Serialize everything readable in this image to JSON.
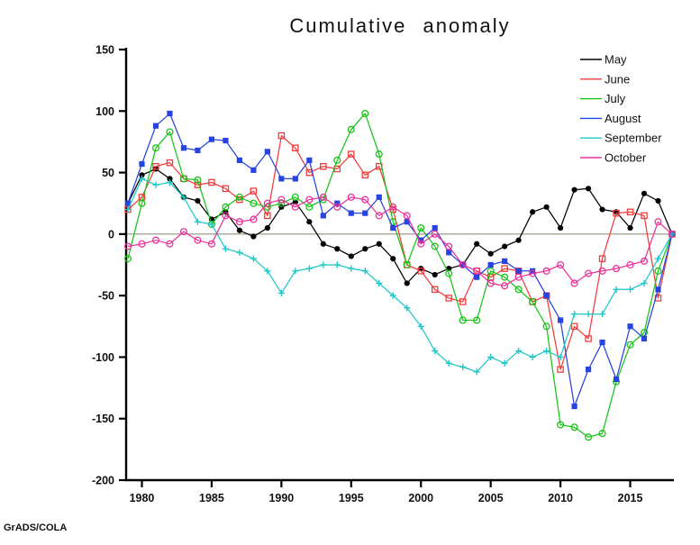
{
  "title": "Cumulative anomaly",
  "footer": {
    "credit": "GrADS/COLA"
  },
  "colors": {
    "axis": "#000000",
    "zero_line": "#a9a398",
    "background": "#ffffff",
    "tick_label": "#111111"
  },
  "chart_data": {
    "type": "line",
    "title": "Cumulative anomaly",
    "xlabel": "",
    "ylabel": "",
    "xlim": [
      1979,
      2018
    ],
    "ylim": [
      -200,
      150
    ],
    "xticks": [
      1980,
      1985,
      1990,
      1995,
      2000,
      2005,
      2010,
      2015
    ],
    "yticks": [
      150,
      100,
      50,
      0,
      -50,
      -100,
      -150,
      -200
    ],
    "grid": false,
    "zero_line": true,
    "legend_position": "top-right",
    "x": [
      1979,
      1980,
      1981,
      1982,
      1983,
      1984,
      1985,
      1986,
      1987,
      1988,
      1989,
      1990,
      1991,
      1992,
      1993,
      1994,
      1995,
      1996,
      1997,
      1998,
      1999,
      2000,
      2001,
      2002,
      2003,
      2004,
      2005,
      2006,
      2007,
      2008,
      2009,
      2010,
      2011,
      2012,
      2013,
      2014,
      2015,
      2016,
      2017,
      2018
    ],
    "series": [
      {
        "name": "May",
        "color": "#000000",
        "marker": "filled-circle",
        "values": [
          25,
          48,
          53,
          45,
          30,
          27,
          12,
          18,
          3,
          -2,
          5,
          22,
          26,
          10,
          -8,
          -12,
          -18,
          -12,
          -8,
          -20,
          -40,
          -28,
          -33,
          -28,
          -25,
          -8,
          -16,
          -10,
          -5,
          18,
          22,
          5,
          36,
          37,
          20,
          18,
          5,
          33,
          27,
          0
        ]
      },
      {
        "name": "June",
        "color": "#f23c3c",
        "marker": "open-square",
        "values": [
          20,
          30,
          55,
          58,
          45,
          40,
          42,
          37,
          28,
          35,
          15,
          80,
          70,
          50,
          55,
          53,
          65,
          48,
          55,
          20,
          -25,
          -30,
          -45,
          -52,
          -55,
          -30,
          -35,
          -28,
          -30,
          -55,
          -50,
          -110,
          -75,
          -85,
          -20,
          17,
          18,
          15,
          -52,
          0
        ]
      },
      {
        "name": "July",
        "color": "#18c318",
        "marker": "open-circle",
        "values": [
          -20,
          25,
          70,
          83,
          45,
          44,
          8,
          22,
          30,
          25,
          22,
          25,
          30,
          22,
          28,
          60,
          85,
          98,
          65,
          10,
          -25,
          5,
          -10,
          -32,
          -70,
          -70,
          -30,
          -35,
          -45,
          -55,
          -75,
          -155,
          -157,
          -165,
          -162,
          -120,
          -90,
          -80,
          -30,
          0
        ]
      },
      {
        "name": "August",
        "color": "#2743e0",
        "marker": "filled-square",
        "values": [
          25,
          57,
          88,
          98,
          70,
          68,
          77,
          76,
          60,
          52,
          67,
          45,
          45,
          60,
          15,
          25,
          17,
          17,
          30,
          5,
          10,
          -5,
          5,
          -15,
          -25,
          -35,
          -25,
          -22,
          -30,
          -30,
          -50,
          -70,
          -140,
          -110,
          -88,
          -118,
          -75,
          -85,
          -45,
          0
        ]
      },
      {
        "name": "September",
        "color": "#1fc8c8",
        "marker": "plus",
        "values": [
          20,
          45,
          40,
          42,
          30,
          10,
          8,
          -12,
          -15,
          -20,
          -30,
          -48,
          -30,
          -28,
          -25,
          -25,
          -28,
          -30,
          -40,
          -50,
          -60,
          -75,
          -95,
          -105,
          -108,
          -112,
          -100,
          -105,
          -95,
          -100,
          -95,
          -100,
          -65,
          -65,
          -65,
          -45,
          -45,
          -40,
          -20,
          0
        ]
      },
      {
        "name": "October",
        "color": "#e8349b",
        "marker": "open-circle",
        "values": [
          -10,
          -8,
          -5,
          -8,
          2,
          -5,
          -8,
          15,
          10,
          12,
          25,
          28,
          22,
          28,
          30,
          22,
          30,
          28,
          15,
          22,
          15,
          -8,
          0,
          -10,
          -25,
          -30,
          -40,
          -42,
          -35,
          -32,
          -30,
          -25,
          -40,
          -32,
          -30,
          -28,
          -25,
          -22,
          10,
          0
        ]
      }
    ]
  }
}
